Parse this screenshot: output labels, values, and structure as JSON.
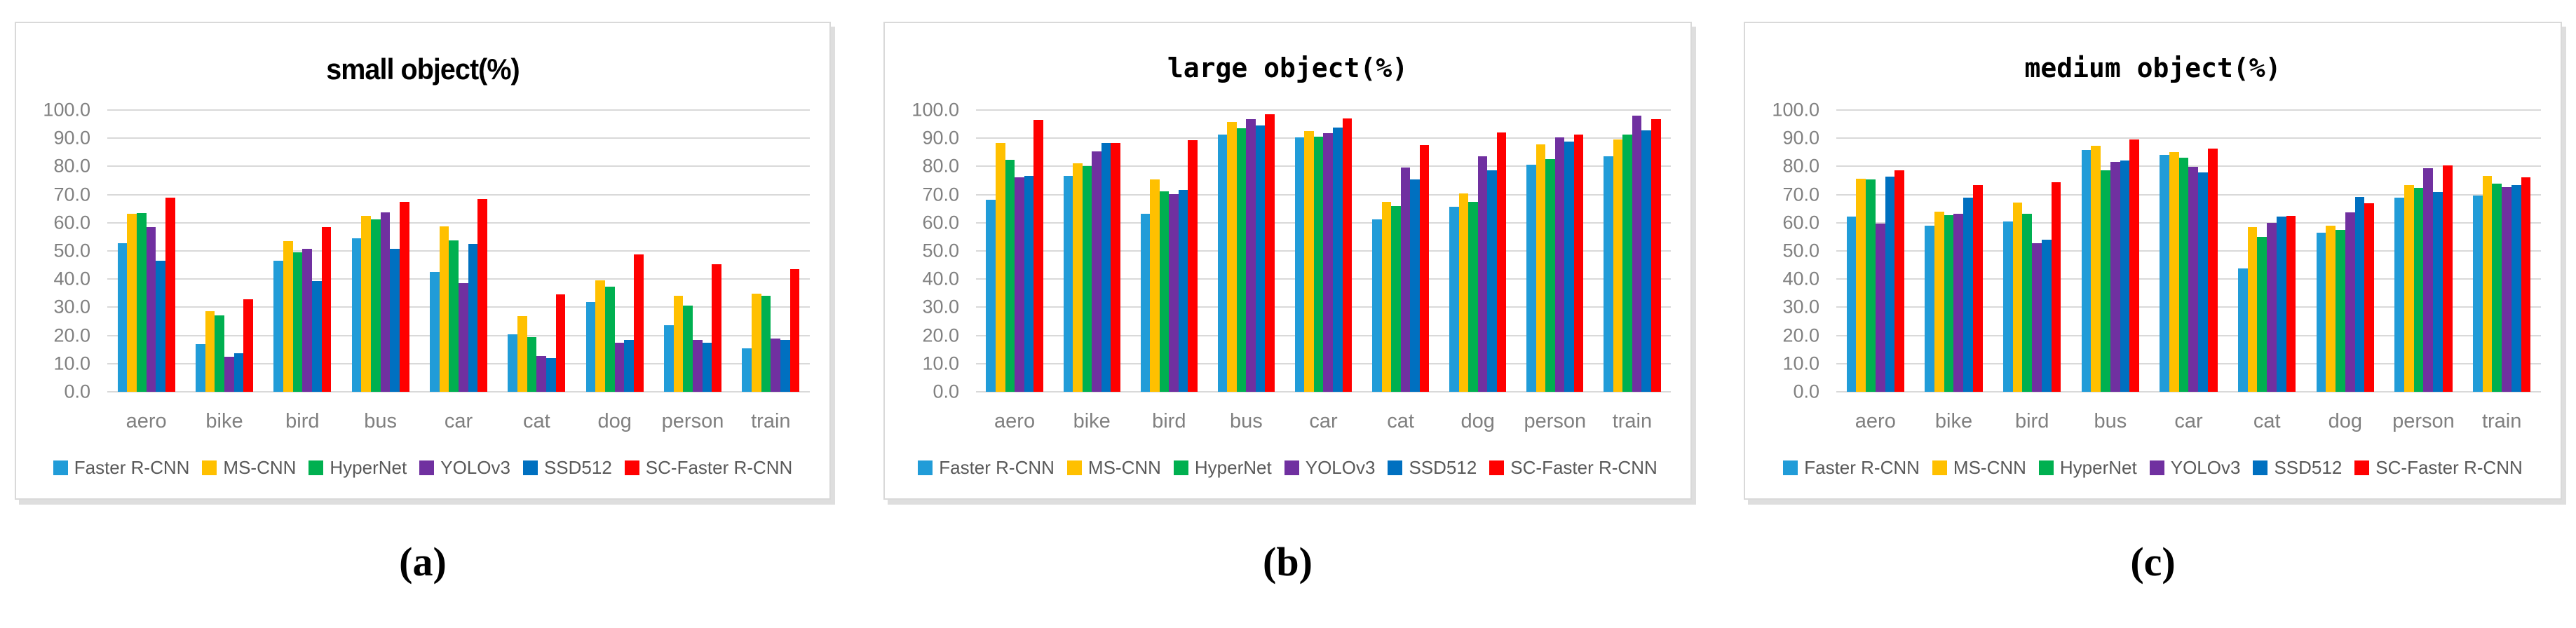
{
  "figure": {
    "captions": [
      "(a)",
      "(b)",
      "(c)"
    ]
  },
  "colors": {
    "grid": "#d9d9d9",
    "panel_border": "#d9d9d9",
    "shadow": "#dedede",
    "axis_text": "#808080",
    "legend_text": "#595959",
    "title": "#000000",
    "background": "#ffffff"
  },
  "chart_data": [
    {
      "type": "bar",
      "title": "small object(%)",
      "xlabel": "",
      "ylabel": "",
      "ylim": [
        0,
        100
      ],
      "ytick_step": 10,
      "grid": true,
      "legend_position": "bottom",
      "categories": [
        "aero",
        "bike",
        "bird",
        "bus",
        "car",
        "cat",
        "dog",
        "person",
        "train"
      ],
      "series": [
        {
          "name": "Faster R-CNN",
          "color": "#219cd8",
          "values": [
            52.8,
            17.0,
            46.6,
            54.6,
            42.6,
            20.3,
            31.9,
            23.6,
            15.4
          ]
        },
        {
          "name": "MS-CNN",
          "color": "#ffc000",
          "values": [
            63.2,
            28.5,
            53.5,
            62.4,
            58.8,
            26.8,
            39.6,
            34.0,
            34.9
          ]
        },
        {
          "name": "HyperNet",
          "color": "#00b050",
          "values": [
            63.5,
            27.0,
            49.5,
            61.2,
            53.8,
            19.4,
            37.4,
            30.6,
            34.2
          ]
        },
        {
          "name": "YOLOv3",
          "color": "#7030a0",
          "values": [
            58.5,
            12.5,
            50.8,
            63.8,
            38.5,
            12.6,
            17.4,
            18.4,
            18.9
          ]
        },
        {
          "name": "SSD512",
          "color": "#0070c0",
          "values": [
            46.5,
            13.6,
            39.2,
            50.8,
            52.5,
            11.9,
            18.4,
            17.3,
            18.3
          ]
        },
        {
          "name": "SC-Faster R-CNN",
          "color": "#ff0000",
          "values": [
            68.8,
            32.8,
            58.5,
            67.5,
            68.3,
            34.5,
            48.8,
            45.4,
            43.5
          ]
        }
      ]
    },
    {
      "type": "bar",
      "title": "large object(%)",
      "xlabel": "",
      "ylabel": "",
      "ylim": [
        0,
        100
      ],
      "ytick_step": 10,
      "grid": true,
      "legend_position": "bottom",
      "categories": [
        "aero",
        "bike",
        "bird",
        "bus",
        "car",
        "cat",
        "dog",
        "person",
        "train"
      ],
      "series": [
        {
          "name": "Faster R-CNN",
          "color": "#219cd8",
          "values": [
            68.2,
            76.5,
            63.2,
            91.3,
            90.4,
            61.2,
            65.6,
            80.5,
            83.5
          ]
        },
        {
          "name": "MS-CNN",
          "color": "#ffc000",
          "values": [
            88.2,
            81.0,
            75.5,
            95.8,
            92.5,
            67.4,
            70.5,
            87.8,
            89.5
          ]
        },
        {
          "name": "HyperNet",
          "color": "#00b050",
          "values": [
            82.4,
            80.2,
            71.2,
            93.5,
            90.5,
            65.9,
            67.3,
            82.5,
            91.4
          ]
        },
        {
          "name": "YOLOv3",
          "color": "#7030a0",
          "values": [
            76.0,
            85.3,
            70.2,
            96.7,
            91.7,
            79.7,
            83.6,
            90.3,
            98.0
          ]
        },
        {
          "name": "SSD512",
          "color": "#0070c0",
          "values": [
            76.7,
            88.3,
            71.7,
            94.5,
            93.7,
            75.4,
            78.7,
            88.9,
            92.7
          ]
        },
        {
          "name": "SC-Faster R-CNN",
          "color": "#ff0000",
          "values": [
            96.6,
            88.3,
            89.4,
            98.5,
            97.1,
            87.6,
            92.0,
            91.2,
            96.8
          ]
        }
      ]
    },
    {
      "type": "bar",
      "title": "medium object(%)",
      "xlabel": "",
      "ylabel": "",
      "ylim": [
        0,
        100
      ],
      "ytick_step": 10,
      "grid": true,
      "legend_position": "bottom",
      "categories": [
        "aero",
        "bike",
        "bird",
        "bus",
        "car",
        "cat",
        "dog",
        "person",
        "train"
      ],
      "series": [
        {
          "name": "Faster R-CNN",
          "color": "#219cd8",
          "values": [
            62.3,
            59.0,
            60.4,
            85.8,
            84.1,
            43.8,
            56.5,
            68.8,
            69.7
          ]
        },
        {
          "name": "MS-CNN",
          "color": "#ffc000",
          "values": [
            75.6,
            64.0,
            67.2,
            87.4,
            85.2,
            58.4,
            59.0,
            73.3,
            76.6
          ]
        },
        {
          "name": "HyperNet",
          "color": "#00b050",
          "values": [
            75.4,
            62.8,
            63.2,
            78.6,
            83.2,
            55.1,
            57.4,
            72.3,
            74.0
          ]
        },
        {
          "name": "YOLOv3",
          "color": "#7030a0",
          "values": [
            59.8,
            63.2,
            52.8,
            81.7,
            79.8,
            59.9,
            63.8,
            79.3,
            72.7
          ]
        },
        {
          "name": "SSD512",
          "color": "#0070c0",
          "values": [
            76.4,
            68.8,
            54.1,
            82.2,
            77.9,
            62.2,
            69.2,
            70.9,
            73.4
          ]
        },
        {
          "name": "SC-Faster R-CNN",
          "color": "#ff0000",
          "values": [
            78.6,
            73.3,
            74.3,
            89.6,
            86.2,
            62.4,
            67.0,
            80.3,
            76.1
          ]
        }
      ]
    }
  ]
}
